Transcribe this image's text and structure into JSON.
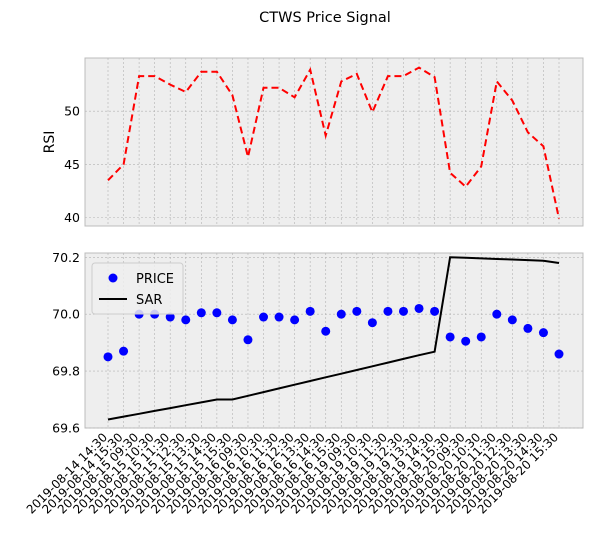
{
  "chart_data": {
    "title": "CTWS Price Signal",
    "x": [
      "2019-08-14 14:30",
      "2019-08-14 15:30",
      "2019-08-15 09:30",
      "2019-08-15 10:30",
      "2019-08-15 11:30",
      "2019-08-15 12:30",
      "2019-08-15 13:30",
      "2019-08-15 14:30",
      "2019-08-15 15:30",
      "2019-08-16 09:30",
      "2019-08-16 10:30",
      "2019-08-16 11:30",
      "2019-08-16 12:30",
      "2019-08-16 13:30",
      "2019-08-16 14:30",
      "2019-08-16 15:30",
      "2019-08-19 09:30",
      "2019-08-19 10:30",
      "2019-08-19 11:30",
      "2019-08-19 12:30",
      "2019-08-19 13:30",
      "2019-08-19 14:30",
      "2019-08-19 15:30",
      "2019-08-20 09:30",
      "2019-08-20 10:30",
      "2019-08-20 11:30",
      "2019-08-20 12:30",
      "2019-08-20 13:30",
      "2019-08-20 14:30",
      "2019-08-20 15:30"
    ],
    "panels": [
      {
        "type": "line",
        "ylabel": "RSI",
        "ylim": [
          39.2,
          55.0
        ],
        "yticks": [
          40,
          45,
          50
        ],
        "grid": true,
        "series": [
          {
            "name": "RSI",
            "style": "dashed",
            "color": "#ff0000",
            "values": [
              43.5,
              45.0,
              53.3,
              53.3,
              52.5,
              51.8,
              53.7,
              53.7,
              51.5,
              45.7,
              52.2,
              52.2,
              51.3,
              53.9,
              47.7,
              52.8,
              53.5,
              49.9,
              53.3,
              53.3,
              54.1,
              53.2,
              44.2,
              42.9,
              44.8,
              52.8,
              51.0,
              48.0,
              46.7,
              39.9
            ]
          }
        ]
      },
      {
        "type": "scatter+line",
        "ylabel": "",
        "ylim": [
          69.6,
          70.215
        ],
        "yticks": [
          69.6,
          69.8,
          70.0,
          70.2
        ],
        "ytick_labels": [
          "69.6",
          "69.8",
          "70.0",
          "70.2"
        ],
        "grid": true,
        "legend": "top-left",
        "series": [
          {
            "name": "PRICE",
            "kind": "scatter",
            "color": "#0000ff",
            "values": [
              69.85,
              69.87,
              70.0,
              70.0,
              69.99,
              69.98,
              70.005,
              70.005,
              69.98,
              69.91,
              69.99,
              69.99,
              69.98,
              70.01,
              69.94,
              70.0,
              70.01,
              69.97,
              70.01,
              70.01,
              70.02,
              70.01,
              69.92,
              69.905,
              69.92,
              70.0,
              69.98,
              69.95,
              69.935,
              69.86
            ]
          },
          {
            "name": "SAR",
            "kind": "line",
            "color": "#000000",
            "values": [
              69.63,
              69.64,
              69.65,
              69.66,
              69.67,
              69.68,
              69.69,
              69.7,
              69.7,
              69.713,
              69.726,
              69.739,
              69.752,
              69.765,
              69.778,
              69.791,
              69.804,
              69.817,
              69.83,
              69.843,
              69.856,
              69.868,
              70.2,
              70.198,
              70.196,
              70.194,
              70.192,
              70.19,
              70.188,
              70.18
            ]
          }
        ]
      }
    ]
  }
}
